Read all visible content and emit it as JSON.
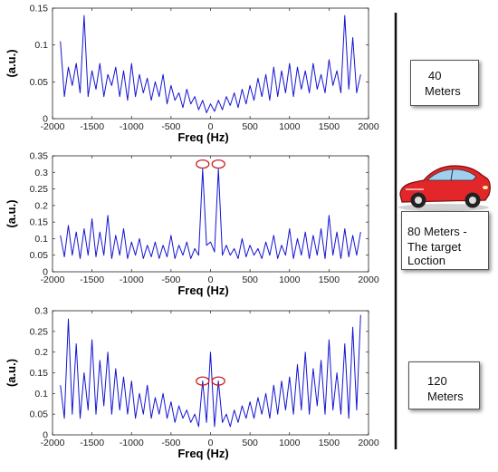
{
  "colors": {
    "series": "#1414d2",
    "marker": "#c81e1e",
    "divider": "#111111",
    "car_body": "#e3262a"
  },
  "icons": {
    "car": "car-icon"
  },
  "chart_data": [
    {
      "type": "line",
      "xlabel": "Freq (Hz)",
      "ylabel": "(a.u.)",
      "xlim": [
        -2000,
        2000
      ],
      "ylim": [
        0,
        0.15
      ],
      "xticks": [
        "-2000",
        "-1500",
        "-1000",
        "-500",
        "0",
        "500",
        "1000",
        "1500",
        "2000"
      ],
      "yticks": [
        "0",
        "0.05",
        "0.1",
        "0.15"
      ],
      "series": [
        {
          "x": [
            -1900,
            -1850,
            -1800,
            -1750,
            -1700,
            -1650,
            -1600,
            -1550,
            -1500,
            -1450,
            -1400,
            -1350,
            -1300,
            -1250,
            -1200,
            -1150,
            -1100,
            -1050,
            -1000,
            -950,
            -900,
            -850,
            -800,
            -750,
            -700,
            -650,
            -600,
            -550,
            -500,
            -450,
            -400,
            -350,
            -300,
            -250,
            -200,
            -150,
            -100,
            -50,
            0,
            50,
            100,
            150,
            200,
            250,
            300,
            350,
            400,
            450,
            500,
            550,
            600,
            650,
            700,
            750,
            800,
            850,
            900,
            950,
            1000,
            1050,
            1100,
            1150,
            1200,
            1250,
            1300,
            1350,
            1400,
            1450,
            1500,
            1550,
            1600,
            1650,
            1700,
            1750,
            1800,
            1850,
            1900
          ],
          "values": [
            0.105,
            0.03,
            0.07,
            0.045,
            0.075,
            0.035,
            0.14,
            0.03,
            0.065,
            0.04,
            0.075,
            0.03,
            0.06,
            0.045,
            0.07,
            0.03,
            0.065,
            0.025,
            0.075,
            0.03,
            0.06,
            0.035,
            0.055,
            0.025,
            0.05,
            0.03,
            0.06,
            0.02,
            0.045,
            0.025,
            0.035,
            0.015,
            0.04,
            0.02,
            0.03,
            0.012,
            0.025,
            0.008,
            0.02,
            0.01,
            0.025,
            0.012,
            0.03,
            0.018,
            0.035,
            0.015,
            0.04,
            0.02,
            0.045,
            0.025,
            0.055,
            0.03,
            0.06,
            0.025,
            0.07,
            0.03,
            0.065,
            0.035,
            0.075,
            0.03,
            0.07,
            0.04,
            0.065,
            0.035,
            0.075,
            0.04,
            0.06,
            0.035,
            0.08,
            0.045,
            0.065,
            0.035,
            0.14,
            0.04,
            0.11,
            0.035,
            0.06
          ]
        }
      ],
      "markers": []
    },
    {
      "type": "line",
      "xlabel": "Freq (Hz)",
      "ylabel": "(a.u.)",
      "xlim": [
        -2000,
        2000
      ],
      "ylim": [
        0,
        0.35
      ],
      "xticks": [
        "-2000",
        "-1500",
        "-1000",
        "-500",
        "0",
        "500",
        "1000",
        "1500",
        "2000"
      ],
      "yticks": [
        "0",
        "0.05",
        "0.1",
        "0.15",
        "0.2",
        "0.25",
        "0.3",
        "0.35"
      ],
      "series": [
        {
          "x": [
            -1900,
            -1850,
            -1800,
            -1750,
            -1700,
            -1650,
            -1600,
            -1550,
            -1500,
            -1450,
            -1400,
            -1350,
            -1300,
            -1250,
            -1200,
            -1150,
            -1100,
            -1050,
            -1000,
            -950,
            -900,
            -850,
            -800,
            -750,
            -700,
            -650,
            -600,
            -550,
            -500,
            -450,
            -400,
            -350,
            -300,
            -250,
            -200,
            -150,
            -100,
            -50,
            0,
            50,
            100,
            150,
            200,
            250,
            300,
            350,
            400,
            450,
            500,
            550,
            600,
            650,
            700,
            750,
            800,
            850,
            900,
            950,
            1000,
            1050,
            1100,
            1150,
            1200,
            1250,
            1300,
            1350,
            1400,
            1450,
            1500,
            1550,
            1600,
            1650,
            1700,
            1750,
            1800,
            1850,
            1900
          ],
          "values": [
            0.11,
            0.045,
            0.14,
            0.05,
            0.12,
            0.04,
            0.13,
            0.05,
            0.16,
            0.045,
            0.12,
            0.05,
            0.17,
            0.04,
            0.11,
            0.05,
            0.13,
            0.04,
            0.09,
            0.05,
            0.1,
            0.04,
            0.08,
            0.045,
            0.09,
            0.04,
            0.08,
            0.045,
            0.11,
            0.04,
            0.08,
            0.05,
            0.09,
            0.04,
            0.07,
            0.05,
            0.31,
            0.08,
            0.09,
            0.06,
            0.31,
            0.05,
            0.08,
            0.05,
            0.07,
            0.04,
            0.1,
            0.045,
            0.08,
            0.05,
            0.07,
            0.04,
            0.09,
            0.05,
            0.11,
            0.04,
            0.08,
            0.05,
            0.13,
            0.04,
            0.1,
            0.05,
            0.12,
            0.04,
            0.11,
            0.05,
            0.13,
            0.04,
            0.17,
            0.05,
            0.12,
            0.04,
            0.13,
            0.045,
            0.11,
            0.05,
            0.12
          ]
        }
      ],
      "markers": [
        {
          "x": -100,
          "y": 0.325
        },
        {
          "x": 100,
          "y": 0.325
        }
      ]
    },
    {
      "type": "line",
      "xlabel": "Freq (Hz)",
      "ylabel": "(a.u.)",
      "xlim": [
        -2000,
        2000
      ],
      "ylim": [
        0,
        0.3
      ],
      "xticks": [
        "-2000",
        "-1500",
        "-1000",
        "-500",
        "0",
        "500",
        "1000",
        "1500",
        "2000"
      ],
      "yticks": [
        "0",
        "0.05",
        "0.1",
        "0.15",
        "0.2",
        "0.25",
        "0.3"
      ],
      "series": [
        {
          "x": [
            -1900,
            -1850,
            -1800,
            -1750,
            -1700,
            -1650,
            -1600,
            -1550,
            -1500,
            -1450,
            -1400,
            -1350,
            -1300,
            -1250,
            -1200,
            -1150,
            -1100,
            -1050,
            -1000,
            -950,
            -900,
            -850,
            -800,
            -750,
            -700,
            -650,
            -600,
            -550,
            -500,
            -450,
            -400,
            -350,
            -300,
            -250,
            -200,
            -150,
            -100,
            -50,
            0,
            50,
            100,
            150,
            200,
            250,
            300,
            350,
            400,
            450,
            500,
            550,
            600,
            650,
            700,
            750,
            800,
            850,
            900,
            950,
            1000,
            1050,
            1100,
            1150,
            1200,
            1250,
            1300,
            1350,
            1400,
            1450,
            1500,
            1550,
            1600,
            1650,
            1700,
            1750,
            1800,
            1850,
            1900
          ],
          "values": [
            0.12,
            0.04,
            0.28,
            0.05,
            0.22,
            0.04,
            0.15,
            0.06,
            0.23,
            0.05,
            0.18,
            0.07,
            0.2,
            0.05,
            0.16,
            0.06,
            0.14,
            0.05,
            0.13,
            0.04,
            0.1,
            0.05,
            0.12,
            0.04,
            0.09,
            0.05,
            0.1,
            0.04,
            0.08,
            0.03,
            0.07,
            0.04,
            0.06,
            0.03,
            0.05,
            0.02,
            0.13,
            0.03,
            0.2,
            0.02,
            0.13,
            0.03,
            0.05,
            0.02,
            0.06,
            0.03,
            0.07,
            0.04,
            0.08,
            0.04,
            0.09,
            0.05,
            0.1,
            0.04,
            0.12,
            0.05,
            0.13,
            0.06,
            0.14,
            0.05,
            0.17,
            0.06,
            0.2,
            0.05,
            0.16,
            0.07,
            0.18,
            0.05,
            0.23,
            0.06,
            0.15,
            0.05,
            0.22,
            0.04,
            0.26,
            0.06,
            0.29
          ]
        }
      ],
      "markers": [
        {
          "x": -100,
          "y": 0.13
        },
        {
          "x": 100,
          "y": 0.13
        }
      ]
    }
  ],
  "labels": {
    "box1": [
      "40",
      "Meters"
    ],
    "box2": [
      "80 Meters -",
      "The target",
      "Loction"
    ],
    "box3": [
      "120",
      "Meters"
    ]
  }
}
